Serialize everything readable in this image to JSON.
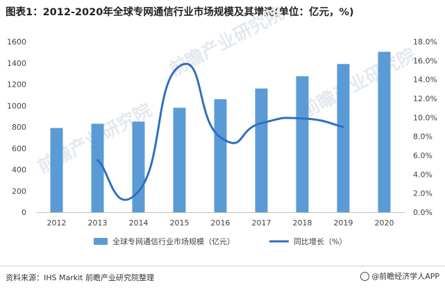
{
  "chart_data": {
    "type": "bar",
    "title": "图表1：2012-2020年全球专网通信行业市场规模及其增速(单位：亿元，%)",
    "categories": [
      "2012",
      "2013",
      "2014",
      "2015",
      "2016",
      "2017",
      "2018",
      "2019",
      "2020"
    ],
    "series": [
      {
        "name": "全球专网通信行业市场规模（亿元）",
        "type": "bar",
        "axis": "left",
        "color": "#5b9bd5",
        "values": [
          790,
          830,
          850,
          980,
          1060,
          1160,
          1275,
          1390,
          1505
        ]
      },
      {
        "name": "同比增长（%）",
        "type": "line",
        "axis": "right",
        "color": "#2e6fbf",
        "x": [
          "2013",
          "2014",
          "2015",
          "2016",
          "2017",
          "2018",
          "2019"
        ],
        "values": [
          5.5,
          2.2,
          15.4,
          7.9,
          9.4,
          9.9,
          9.0
        ]
      }
    ],
    "ylim_left": [
      0,
      1600
    ],
    "yticks_left": [
      "0",
      "200",
      "400",
      "600",
      "800",
      "1000",
      "1200",
      "1400",
      "1600"
    ],
    "ylim_right": [
      0,
      18
    ],
    "yticks_right": [
      "0.0%",
      "2.0%",
      "4.0%",
      "6.0%",
      "8.0%",
      "10.0%",
      "12.0%",
      "14.0%",
      "16.0%",
      "18.0%"
    ],
    "grid": false,
    "legend": "bottom"
  },
  "watermark": "前瞻产业研究院",
  "source_text": "资料来源：IHS Markit 前瞻产业研究院整理",
  "brand_text": "@前瞻经济学人APP"
}
